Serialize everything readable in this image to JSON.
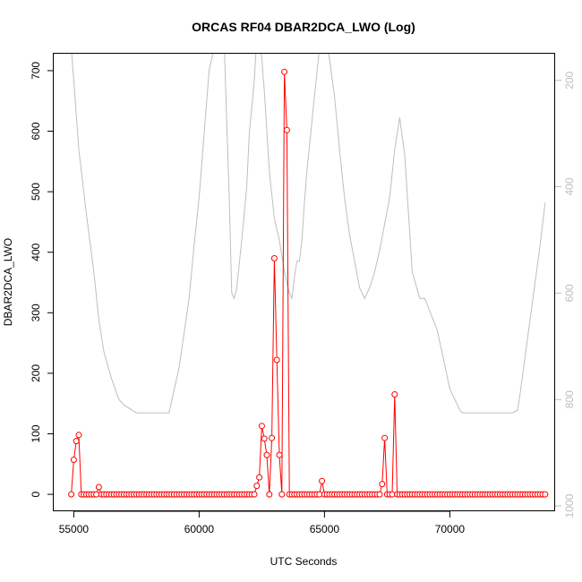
{
  "chart_data": {
    "type": "line",
    "title": "ORCAS RF04 DBAR2DCA_LWO (Log)",
    "xlabel": "UTC Seconds",
    "ylabel": "DBAR2DCA_LWO",
    "xlim": [
      54200,
      74200
    ],
    "ylim": [
      -28,
      728
    ],
    "x_ticks": [
      55000,
      60000,
      65000,
      70000
    ],
    "y_ticks": [
      0,
      100,
      200,
      300,
      400,
      500,
      600,
      700
    ],
    "y2_ticks": [
      200,
      400,
      600,
      800,
      1000
    ],
    "y2lim": [
      1010,
      150
    ],
    "grid": false,
    "legend": "none",
    "colors": {
      "series": "#ff0000",
      "secondary": "#bebebe",
      "axis": "#000000"
    },
    "series": [
      {
        "style": "line+points",
        "x_start": 54900,
        "x_step": 100,
        "values": [
          0,
          57,
          88,
          98,
          0,
          0,
          0,
          0,
          0,
          0,
          0,
          12,
          0,
          0,
          0,
          0,
          0,
          0,
          0,
          0,
          0,
          0,
          0,
          0,
          0,
          0,
          0,
          0,
          0,
          0,
          0,
          0,
          0,
          0,
          0,
          0,
          0,
          0,
          0,
          0,
          0,
          0,
          0,
          0,
          0,
          0,
          0,
          0,
          0,
          0,
          0,
          0,
          0,
          0,
          0,
          0,
          0,
          0,
          0,
          0,
          0,
          0,
          0,
          0,
          0,
          0,
          0,
          0,
          0,
          0,
          0,
          0,
          0,
          0,
          14,
          28,
          113,
          92,
          65,
          0,
          93,
          390,
          222,
          65,
          0,
          698,
          602,
          0,
          0,
          0,
          0,
          0,
          0,
          0,
          0,
          0,
          0,
          0,
          0,
          0,
          22,
          0,
          0,
          0,
          0,
          0,
          0,
          0,
          0,
          0,
          0,
          0,
          0,
          0,
          0,
          0,
          0,
          0,
          0,
          0,
          0,
          0,
          0,
          0,
          17,
          93,
          0,
          0,
          0,
          165,
          0,
          0,
          0,
          0,
          0,
          0,
          0,
          0,
          0,
          0,
          0,
          0,
          0,
          0,
          0,
          0,
          0,
          0,
          0,
          0,
          0,
          0,
          0,
          0,
          0,
          0,
          0,
          0,
          0,
          0,
          0,
          0,
          0,
          0,
          0,
          0,
          0,
          0,
          0,
          0,
          0,
          0,
          0,
          0,
          0,
          0,
          0,
          0,
          0,
          0,
          0,
          0,
          0,
          0,
          0,
          0,
          0,
          0,
          0,
          0
        ]
      },
      {
        "style": "line",
        "axis": "right",
        "x": [
          54900,
          55000,
          55200,
          55500,
          55800,
          56000,
          56200,
          56500,
          56800,
          57000,
          57500,
          58000,
          58500,
          58800,
          59200,
          59600,
          59800,
          60000,
          60200,
          60400,
          60700,
          61000,
          61200,
          61300,
          61400,
          61500,
          61700,
          61900,
          62000,
          62200,
          62300,
          62400,
          62500,
          62600,
          62800,
          63000,
          63200,
          63400,
          63600,
          63700,
          63800,
          63900,
          64000,
          64100,
          64200,
          64300,
          64600,
          64800,
          65000,
          65200,
          65400,
          65600,
          65800,
          66000,
          66200,
          66400,
          66600,
          66800,
          67000,
          67200,
          67400,
          67600,
          67800,
          68000,
          68200,
          68500,
          68800,
          69000,
          69500,
          70000,
          70400,
          70500,
          71000,
          71500,
          72000,
          72500,
          72700,
          72800,
          73000,
          73200,
          73400,
          73600,
          73800
        ],
        "values": [
          140,
          200,
          330,
          450,
          560,
          650,
          710,
          760,
          800,
          810,
          825,
          825,
          825,
          825,
          740,
          610,
          510,
          420,
          300,
          180,
          120,
          130,
          420,
          600,
          610,
          590,
          500,
          400,
          300,
          200,
          120,
          120,
          160,
          220,
          370,
          460,
          500,
          560,
          600,
          610,
          570,
          540,
          540,
          500,
          430,
          370,
          230,
          140,
          100,
          160,
          230,
          330,
          420,
          490,
          540,
          590,
          610,
          590,
          560,
          520,
          470,
          420,
          330,
          270,
          340,
          560,
          610,
          610,
          670,
          780,
          820,
          825,
          825,
          825,
          825,
          825,
          820,
          790,
          720,
          650,
          580,
          510,
          430
        ]
      }
    ]
  }
}
